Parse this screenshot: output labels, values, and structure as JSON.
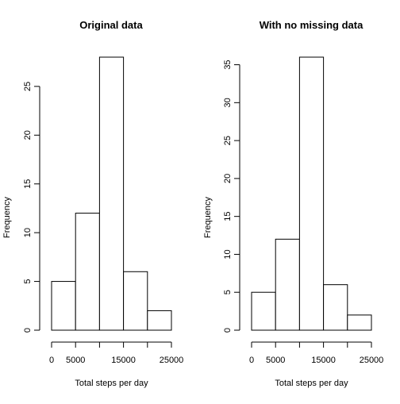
{
  "chart_data": [
    {
      "type": "bar",
      "title": "Original data",
      "xlabel": "Total steps per day",
      "ylabel": "Frequency",
      "bins": [
        [
          0,
          5000
        ],
        [
          5000,
          10000
        ],
        [
          10000,
          15000
        ],
        [
          15000,
          20000
        ],
        [
          20000,
          25000
        ]
      ],
      "values": [
        5,
        12,
        28,
        6,
        2
      ],
      "xticks": [
        0,
        5000,
        15000,
        25000
      ],
      "xticks_drawn": [
        0,
        5000,
        10000,
        15000,
        20000,
        25000
      ],
      "yticks": [
        0,
        5,
        10,
        15,
        20,
        25
      ],
      "xlim": [
        0,
        25000
      ],
      "ylim": [
        0,
        28
      ],
      "grid": false,
      "colors": {
        "bar_fill": "#ffffff",
        "bar_stroke": "#000000"
      }
    },
    {
      "type": "bar",
      "title": "With no missing data",
      "xlabel": "Total steps per day",
      "ylabel": "Frequency",
      "bins": [
        [
          0,
          5000
        ],
        [
          5000,
          10000
        ],
        [
          10000,
          15000
        ],
        [
          15000,
          20000
        ],
        [
          20000,
          25000
        ]
      ],
      "values": [
        5,
        12,
        36,
        6,
        2
      ],
      "xticks": [
        0,
        5000,
        15000,
        25000
      ],
      "xticks_drawn": [
        0,
        5000,
        10000,
        15000,
        20000,
        25000
      ],
      "yticks": [
        0,
        5,
        10,
        15,
        20,
        25,
        30,
        35
      ],
      "xlim": [
        0,
        25000
      ],
      "ylim": [
        0,
        36
      ],
      "grid": false,
      "colors": {
        "bar_fill": "#ffffff",
        "bar_stroke": "#000000"
      }
    }
  ]
}
